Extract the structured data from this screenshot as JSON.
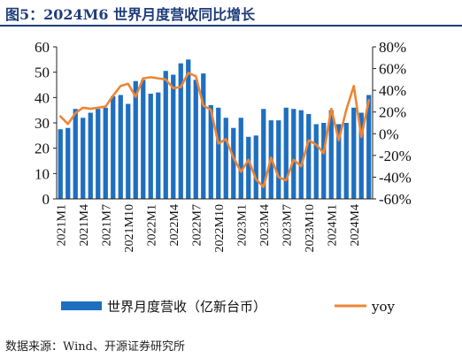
{
  "header": {
    "title": "图5：2024M6 世界月度营收同比增长"
  },
  "footer": {
    "source": "数据来源：Wind、开源证券研究所"
  },
  "colors": {
    "bar": "#1f6fc0",
    "line": "#ee8535",
    "title": "#1f3d7a"
  },
  "chart_data": {
    "type": "bar",
    "title": "2024M6 世界月度营收同比增长",
    "x": [
      "2021M1",
      "2021M2",
      "2021M3",
      "2021M4",
      "2021M5",
      "2021M6",
      "2021M7",
      "2021M8",
      "2021M9",
      "2021M10",
      "2021M11",
      "2021M12",
      "2022M1",
      "2022M2",
      "2022M3",
      "2022M4",
      "2022M5",
      "2022M6",
      "2022M7",
      "2022M8",
      "2022M9",
      "2022M10",
      "2022M11",
      "2022M12",
      "2023M1",
      "2023M2",
      "2023M3",
      "2023M4",
      "2023M5",
      "2023M6",
      "2023M7",
      "2023M8",
      "2023M9",
      "2023M10",
      "2023M11",
      "2023M12",
      "2024M1",
      "2024M2",
      "2024M3",
      "2024M4",
      "2024M5",
      "2024M6"
    ],
    "xticks": [
      "2021M1",
      "2021M4",
      "2021M7",
      "2021M10",
      "2022M1",
      "2022M4",
      "2022M7",
      "2022M10",
      "2023M1",
      "2023M4",
      "2023M7",
      "2023M10",
      "2024M1",
      "2024M4"
    ],
    "series": [
      {
        "name": "世界月度营收（亿新台币）",
        "type": "bar",
        "axis": "left",
        "values": [
          27.5,
          28,
          35.5,
          32,
          34,
          35.5,
          36,
          40.5,
          41,
          37.5,
          46.5,
          47,
          41.5,
          42,
          50.5,
          49,
          53.5,
          55,
          47,
          49.5,
          37,
          36,
          32,
          28,
          32,
          24.5,
          25,
          35.5,
          31,
          31,
          36,
          35.5,
          35,
          33.5,
          29.5,
          30,
          35,
          29.5,
          30,
          36,
          34,
          41
        ]
      },
      {
        "name": "yoy",
        "type": "line",
        "axis": "right",
        "values": [
          16,
          9,
          19,
          24,
          23,
          24,
          25,
          35,
          44,
          46,
          34,
          51,
          52,
          51,
          50,
          42,
          43,
          56,
          53,
          26,
          22,
          -9,
          -5,
          -22,
          -35,
          -24,
          -42,
          -49,
          -22,
          -40,
          -43,
          -24,
          -30,
          -6,
          -10,
          -18,
          23,
          -6,
          22,
          44,
          -3,
          31
        ]
      }
    ],
    "y_left": {
      "ylim": [
        0,
        60
      ],
      "ticks": [
        "0",
        "10",
        "20",
        "30",
        "40",
        "50",
        "60"
      ]
    },
    "y_right": {
      "ylim": [
        -60,
        80
      ],
      "ticks": [
        "-60%",
        "-40%",
        "-20%",
        "0%",
        "20%",
        "40%",
        "60%",
        "80%"
      ]
    },
    "legend": {
      "placement": "bottom",
      "items": [
        "世界月度营收（亿新台币）",
        "yoy"
      ]
    },
    "grid": false
  }
}
